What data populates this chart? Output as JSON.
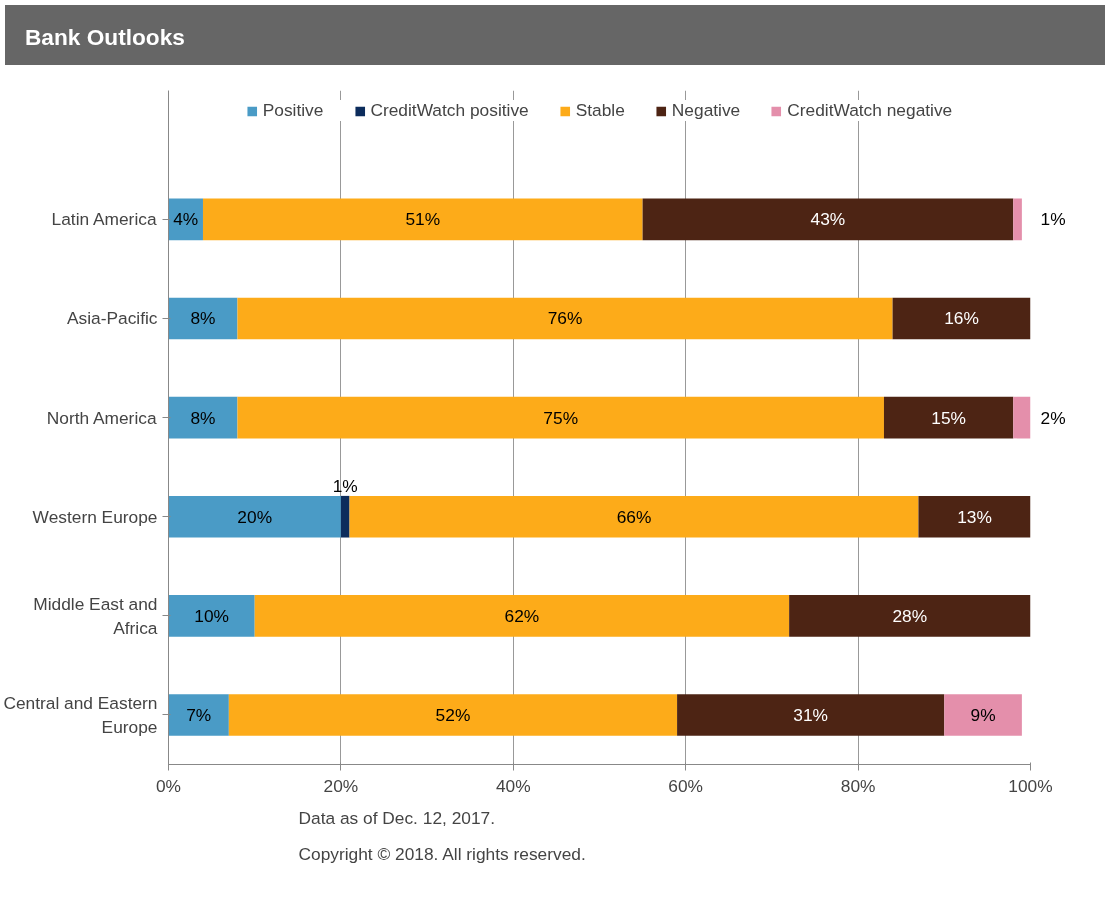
{
  "chart_data": {
    "type": "bar",
    "orientation": "horizontal",
    "stacked": true,
    "title": "Bank Outlooks",
    "categories": [
      "Latin America",
      "Asia-Pacific",
      "North America",
      "Western Europe",
      "Middle East and Africa",
      "Central and Eastern Europe"
    ],
    "series": [
      {
        "name": "Positive",
        "color": "#4a9bc6",
        "values": [
          4,
          8,
          8,
          20,
          10,
          7
        ],
        "value_labels": [
          "4%",
          "8%",
          "8%",
          "20%",
          "10%",
          "7%"
        ]
      },
      {
        "name": "CreditWatch positive",
        "color": "#0c2c5c",
        "values": [
          0,
          0,
          0,
          1,
          0,
          0
        ],
        "value_labels": [
          null,
          null,
          null,
          "1%",
          null,
          null
        ]
      },
      {
        "name": "Stable",
        "color": "#fdab19",
        "values": [
          51,
          76,
          75,
          66,
          62,
          52
        ],
        "value_labels": [
          "51%",
          "76%",
          "75%",
          "66%",
          "62%",
          "52%"
        ]
      },
      {
        "name": "Negative",
        "color": "#4d2414",
        "values": [
          43,
          16,
          15,
          13,
          28,
          31
        ],
        "value_labels": [
          "43%",
          "16%",
          "15%",
          "13%",
          "28%",
          "31%"
        ]
      },
      {
        "name": "CreditWatch negative",
        "color": "#e48fab",
        "values": [
          1,
          0,
          2,
          0,
          0,
          9
        ],
        "value_labels": [
          "1%",
          null,
          "2%",
          null,
          null,
          "9%"
        ]
      }
    ],
    "xlim": [
      0,
      100
    ],
    "xticks": [
      {
        "value": 0,
        "label": "0%"
      },
      {
        "value": 20,
        "label": "20%"
      },
      {
        "value": 40,
        "label": "40%"
      },
      {
        "value": 60,
        "label": "60%"
      },
      {
        "value": 80,
        "label": "80%"
      },
      {
        "value": 100,
        "label": "100%"
      }
    ],
    "grid": "x",
    "legend": "top",
    "annotations": [
      "Data as of Dec. 12, 2017.",
      "Copyright © 2018. All rights reserved."
    ]
  }
}
